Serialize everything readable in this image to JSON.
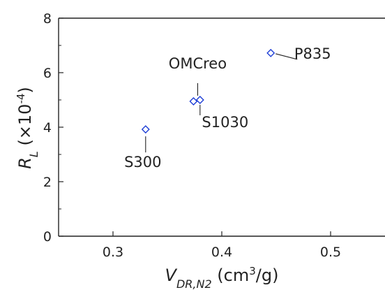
{
  "chart_data": {
    "type": "scatter",
    "marker": "open-diamond",
    "marker_color": "#1f3fd6",
    "points": [
      {
        "label": "S300",
        "x": 0.33,
        "y": 3.92
      },
      {
        "label": "",
        "x": 0.374,
        "y": 4.95
      },
      {
        "label": "S1030",
        "x": 0.38,
        "y": 5.0
      },
      {
        "label": "OMCreo",
        "x": 0.374,
        "y": 4.95
      },
      {
        "label": "P835",
        "x": 0.445,
        "y": 6.72
      }
    ],
    "xlim": [
      0.25,
      0.55
    ],
    "ylim": [
      0,
      8
    ],
    "xticks": [
      0.3,
      0.4,
      0.5
    ],
    "yticks": [
      0,
      2,
      4,
      6,
      8
    ],
    "xtick_labels": [
      "0.3",
      "0.4",
      "0.5"
    ],
    "ytick_labels": [
      "0",
      "2",
      "4",
      "6",
      "8"
    ],
    "xlabel": {
      "var": "V",
      "sub": "DR,N2",
      "unit_pre": " (cm",
      "sup": "3",
      "unit_post": "/g)"
    },
    "ylabel": {
      "var": "R",
      "sub": "L",
      "unit_pre": " (×10",
      "sup": "-4",
      "unit_post": ")"
    },
    "grid": false,
    "legend": "none"
  }
}
